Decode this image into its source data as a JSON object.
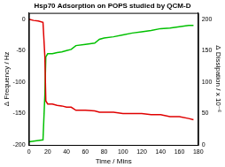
{
  "chart_data": {
    "type": "line",
    "title": "Hsp70 Adsorption on POPS studied by QCM-D",
    "x_label": "Time / Mins",
    "y_label": "Δ Frequency / Hz",
    "y2_label": "Δ Dissipation / x 10⁻⁶",
    "x": [
      0,
      5,
      10,
      15,
      17,
      18,
      20,
      25,
      30,
      35,
      40,
      45,
      50,
      60,
      70,
      75,
      80,
      90,
      100,
      110,
      120,
      130,
      140,
      150,
      160,
      170,
      175
    ],
    "series": [
      {
        "name": "Δ Frequency",
        "color": "#e00000",
        "axis": "y",
        "values": [
          0,
          -2,
          -3,
          -5,
          -60,
          -130,
          -135,
          -135,
          -137,
          -138,
          -140,
          -140,
          -145,
          -145,
          -146,
          -148,
          -148,
          -148,
          -150,
          -150,
          -150,
          -152,
          -152,
          -155,
          -155,
          -158,
          -160
        ]
      },
      {
        "name": "Δ Dissipation",
        "color": "#00c000",
        "axis": "y2",
        "values": [
          5,
          6,
          7,
          8,
          80,
          140,
          145,
          145,
          147,
          148,
          150,
          152,
          158,
          160,
          162,
          168,
          170,
          172,
          175,
          178,
          180,
          182,
          185,
          186,
          188,
          190,
          190
        ]
      }
    ],
    "xlim": [
      0,
      180
    ],
    "xticks": [
      0,
      20,
      40,
      60,
      80,
      100,
      120,
      140,
      160,
      180
    ],
    "ylim": [
      -200,
      10
    ],
    "yticks": [
      -200,
      -150,
      -100,
      -50,
      0
    ],
    "y2lim": [
      0,
      210
    ],
    "y2ticks": [
      0,
      50,
      100,
      150,
      200
    ],
    "grid": false
  }
}
